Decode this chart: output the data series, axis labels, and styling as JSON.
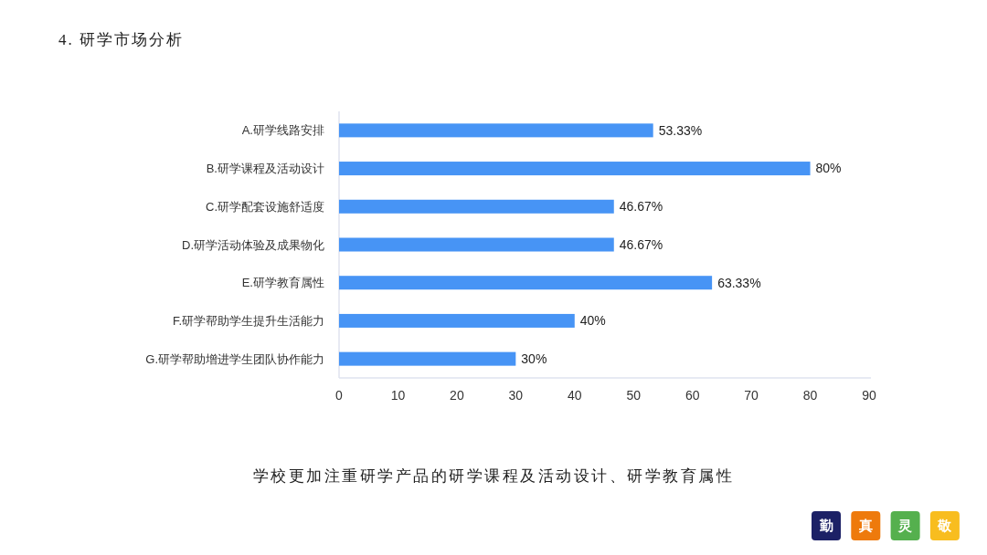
{
  "chart_data": {
    "type": "bar",
    "orientation": "horizontal",
    "title": "4. 研学市场分析",
    "categories": [
      "A.研学线路安排",
      "B.研学课程及活动设计",
      "C.研学配套设施舒适度",
      "D.研学活动体验及成果物化",
      "E.研学教育属性",
      "F.研学帮助学生提升生活能力",
      "G.研学帮助增进学生团队协作能力"
    ],
    "values": [
      53.33,
      80,
      46.67,
      46.67,
      63.33,
      40,
      30
    ],
    "value_labels": [
      "53.33%",
      "80%",
      "46.67%",
      "46.67%",
      "63.33%",
      "40%",
      "30%"
    ],
    "color": "#4794f5",
    "xlim": [
      0,
      90
    ],
    "xticks": [
      0,
      10,
      20,
      30,
      40,
      50,
      60,
      70,
      80,
      90
    ],
    "annotations": [
      "学校更加注重研学产品的研学课程及活动设计、研学教育属性",
      "勤",
      "真",
      "灵",
      "敬"
    ]
  }
}
